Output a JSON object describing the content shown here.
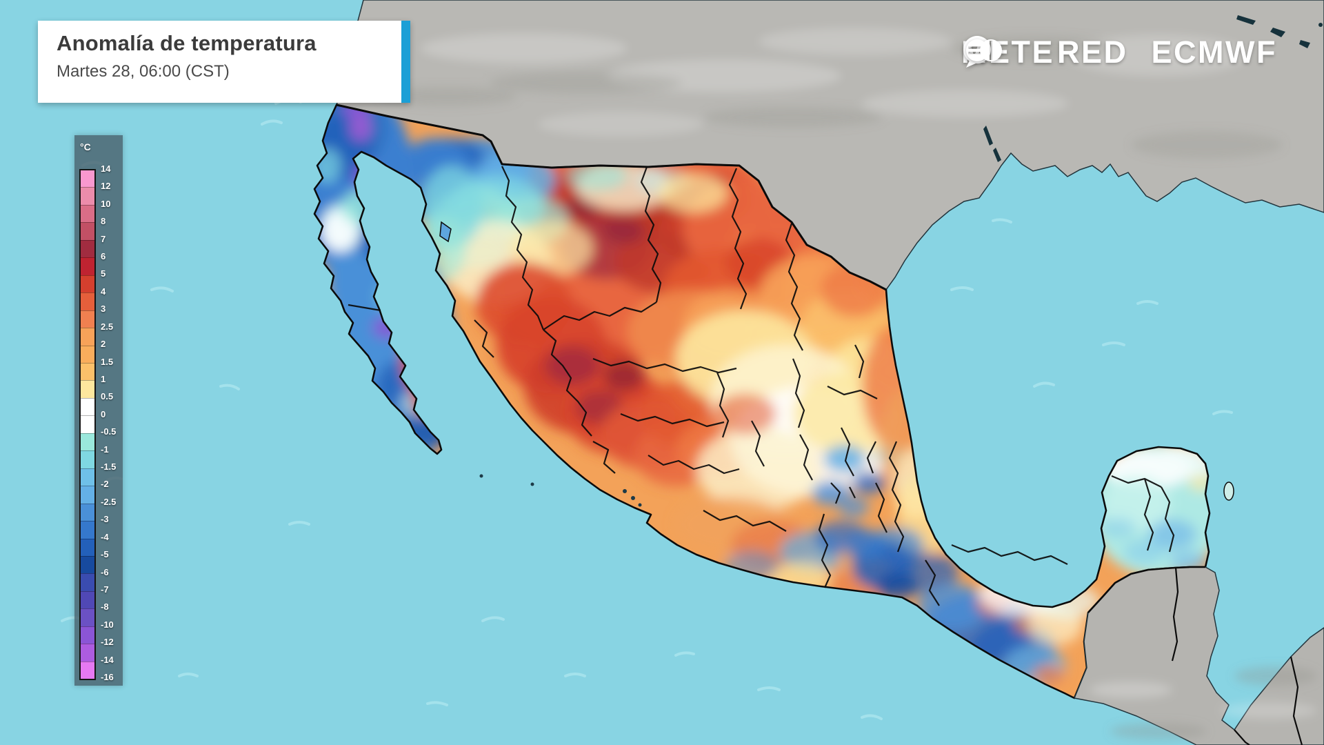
{
  "header": {
    "title": "Anomalía de temperatura",
    "subtitle": "Martes 28, 06:00 (CST)"
  },
  "branding": {
    "brand_prefix": "METE",
    "brand_suffix": "RED",
    "partner": "ECMWF"
  },
  "legend": {
    "unit": "°C",
    "tick_labels": [
      "14",
      "12",
      "10",
      "8",
      "7",
      "6",
      "5",
      "4",
      "3",
      "2.5",
      "2",
      "1.5",
      "1",
      "0.5",
      "0",
      "-0.5",
      "-1",
      "-1.5",
      "-2",
      "-2.5",
      "-3",
      "-4",
      "-5",
      "-6",
      "-7",
      "-8",
      "-10",
      "-12",
      "-14",
      "-16"
    ],
    "band_colors": [
      "#f998cf",
      "#ec8cab",
      "#da6d87",
      "#c25065",
      "#a12c40",
      "#bf2331",
      "#d43f2e",
      "#e55f3b",
      "#f08050",
      "#f7a259",
      "#f9ad5c",
      "#fbc06a",
      "#fde79e",
      "#ffffff",
      "#ffffff",
      "#9ae8dc",
      "#7fd8e2",
      "#6fc0e8",
      "#64b0e6",
      "#4a90d8",
      "#3578cc",
      "#2360ba",
      "#174a9f",
      "#3a4cb0",
      "#5048b5",
      "#6b51c4",
      "#8b55d6",
      "#ad5ce0",
      "#e679f2"
    ],
    "panel_color": "rgba(70,92,104,0.78)"
  },
  "map": {
    "ocean_color": "#88d4e3",
    "ocean_speckle_color": "#b7ebf2",
    "us_land_color": "#b9b8b4",
    "central_america_land_color": "#b5b4b0",
    "country_outline_color": "#0b0b0b",
    "coast_outline_color": "#22343c",
    "accent_bar_color": "#1b9fd6"
  }
}
